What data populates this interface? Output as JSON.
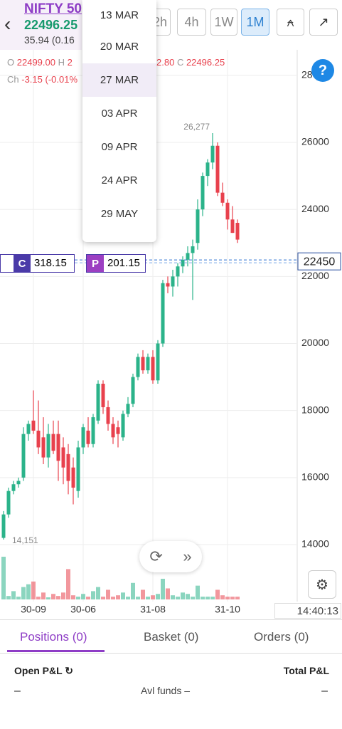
{
  "header": {
    "instrument": "NIFTY 50",
    "price": "22496.25",
    "change": "35.94 (0.16"
  },
  "timeframes": [
    "2h",
    "4h",
    "1W",
    "1M"
  ],
  "expiry_dropdown": [
    "13 MAR",
    "20 MAR",
    "27 MAR",
    "03 APR",
    "09 APR",
    "24 APR",
    "29 MAY"
  ],
  "ohlc": {
    "open_label": "O",
    "open": "22499.00",
    "high_label": "H",
    "high": "2",
    "low": "2.80",
    "close_label": "C",
    "close": "22496.25",
    "change_label": "Ch",
    "change": "-3.15 (-0.01%"
  },
  "options": {
    "call_label": "C",
    "call_price": "318.15",
    "put_label": "P",
    "put_price": "201.15"
  },
  "chart_data": {
    "type": "candlestick",
    "categories": [
      null,
      null,
      null,
      null,
      null,
      null,
      "30-09",
      null,
      null,
      null,
      null,
      null,
      null,
      null,
      null,
      null,
      "30-06",
      null,
      null,
      null,
      null,
      null,
      null,
      null,
      null,
      null,
      null,
      null,
      null,
      null,
      "31-08",
      null,
      null,
      null,
      null,
      null,
      null,
      null,
      null,
      null,
      null,
      null,
      null,
      null,
      null,
      "31-10",
      null,
      null
    ],
    "open": [
      14200,
      14900,
      15600,
      15800,
      16000,
      17300,
      17700,
      17400,
      17200,
      16600,
      17300,
      17300,
      16900,
      16700,
      16300,
      15600,
      16900,
      17400,
      17000,
      17700,
      18800,
      18100,
      17600,
      17500,
      17200,
      17900,
      18200,
      19000,
      19600,
      19200,
      19600,
      18900,
      20000,
      21800,
      21700,
      22000,
      22300,
      22500,
      22700,
      23000,
      24000,
      25000,
      25400,
      25900,
      24500,
      24200,
      23700,
      23600
    ],
    "high": [
      15000,
      15700,
      15900,
      16000,
      17500,
      17700,
      18600,
      18300,
      17800,
      17600,
      17700,
      17700,
      17200,
      17000,
      16600,
      17100,
      17600,
      17800,
      17900,
      18900,
      18900,
      18300,
      17800,
      17700,
      18000,
      18400,
      19100,
      19700,
      19800,
      19700,
      19800,
      20100,
      21900,
      22000,
      22200,
      22400,
      22600,
      22900,
      23100,
      24300,
      25100,
      25500,
      26277,
      26000,
      24800,
      24300,
      24100,
      23700
    ],
    "low": [
      14151,
      14800,
      15500,
      15700,
      15900,
      17100,
      17300,
      16700,
      16400,
      16300,
      16700,
      15900,
      15800,
      15500,
      15200,
      15400,
      16700,
      16900,
      16900,
      17600,
      17900,
      17400,
      17000,
      16900,
      17100,
      17800,
      18100,
      18900,
      19100,
      19100,
      18800,
      18800,
      19900,
      21500,
      21400,
      21700,
      22100,
      22300,
      21300,
      22800,
      23800,
      24700,
      25200,
      24400,
      24100,
      23400,
      23300,
      23000
    ],
    "close": [
      14900,
      15600,
      15800,
      15900,
      17300,
      17600,
      17400,
      16900,
      16600,
      17300,
      16800,
      16500,
      16300,
      15900,
      15700,
      16900,
      17500,
      17000,
      17800,
      18800,
      18100,
      17600,
      17200,
      17300,
      17900,
      18200,
      19000,
      19600,
      19200,
      19600,
      18900,
      20000,
      21800,
      21700,
      22000,
      22300,
      22500,
      22700,
      22900,
      24000,
      25000,
      25400,
      25900,
      24500,
      24200,
      23700,
      23300,
      23100
    ],
    "volumes": [
      62,
      5,
      12,
      4,
      18,
      22,
      26,
      4,
      10,
      3,
      8,
      5,
      10,
      44,
      6,
      4,
      8,
      4,
      12,
      18,
      4,
      14,
      4,
      6,
      10,
      4,
      24,
      4,
      14,
      4,
      6,
      8,
      30,
      16,
      6,
      4,
      10,
      8,
      4,
      20,
      4,
      4,
      4,
      14,
      6,
      4,
      4,
      4
    ],
    "up_color": "#2bb38a",
    "down_color": "#e8414d",
    "ylim": [
      12364,
      28762
    ],
    "yticks": [
      14000,
      16000,
      18000,
      20000,
      22000,
      24000,
      26000,
      28000
    ],
    "last_price": 22450,
    "max_label": {
      "value": 26277,
      "label": "26,277"
    },
    "min_label": {
      "value": 14151,
      "label": "14,151"
    },
    "grid": true
  },
  "clock": "14:40:13",
  "tabs": [
    "Positions (0)",
    "Basket (0)",
    "Orders (0)"
  ],
  "pnl": {
    "open_label": "Open P&L",
    "open_value": "–",
    "funds_label": "Avl funds",
    "funds_value": "–",
    "total_label": "Total P&L",
    "total_value": "–"
  }
}
